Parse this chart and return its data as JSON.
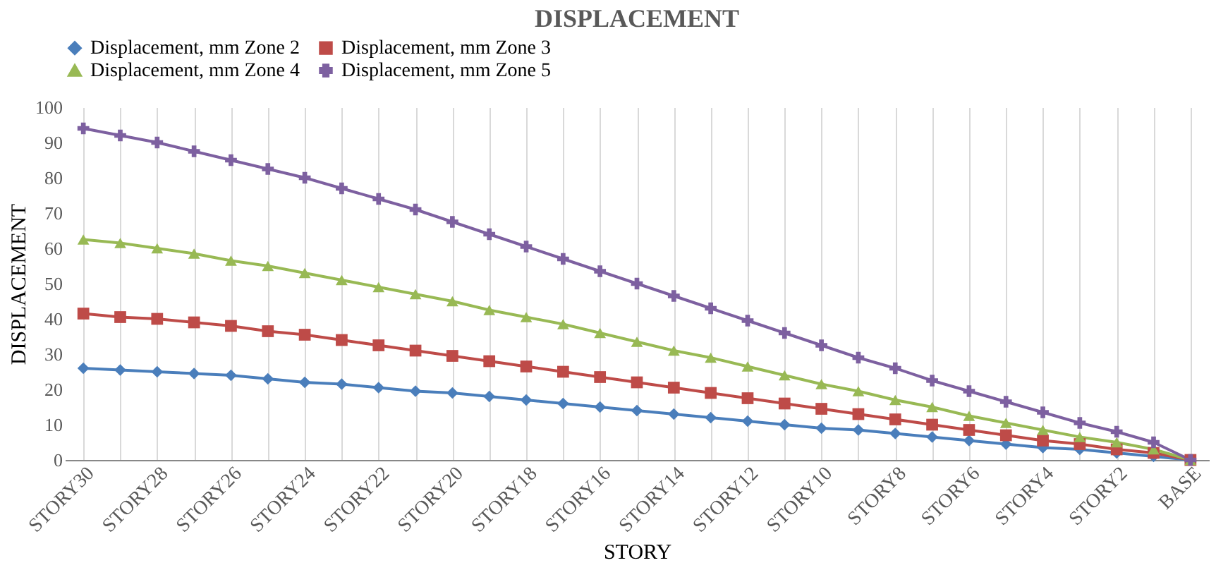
{
  "chart_data": {
    "type": "line",
    "title": "DISPLACEMENT",
    "xlabel": "STORY",
    "ylabel": "DISPLACEMENT",
    "categories": [
      "STORY30",
      null,
      "STORY28",
      null,
      "STORY26",
      null,
      "STORY24",
      null,
      "STORY22",
      null,
      "STORY20",
      null,
      "STORY18",
      null,
      "STORY16",
      null,
      "STORY14",
      null,
      "STORY12",
      null,
      "STORY10",
      null,
      "STORY8",
      null,
      "STORY6",
      null,
      "STORY4",
      null,
      "STORY2",
      null,
      "BASE"
    ],
    "series": [
      {
        "name": "Displacement, mm Zone 2",
        "color": "#4a7ebb",
        "marker": "diamond",
        "values": [
          26,
          25.5,
          25,
          24.5,
          24,
          23,
          22,
          21.5,
          20.5,
          19.5,
          19,
          18,
          17,
          16,
          15,
          14,
          13,
          12,
          11,
          10,
          9,
          8.5,
          7.5,
          6.5,
          5.5,
          4.5,
          3.5,
          3,
          2,
          1,
          0
        ]
      },
      {
        "name": "Displacement, mm Zone 3",
        "color": "#be4b48",
        "marker": "square",
        "values": [
          41.5,
          40.5,
          40,
          39,
          38,
          36.5,
          35.5,
          34,
          32.5,
          31,
          29.5,
          28,
          26.5,
          25,
          23.5,
          22,
          20.5,
          19,
          17.5,
          16,
          14.5,
          13,
          11.5,
          10,
          8.5,
          7,
          5.5,
          4.5,
          3,
          2,
          0
        ]
      },
      {
        "name": "Displacement, mm Zone 4",
        "color": "#98b954",
        "marker": "triangle",
        "values": [
          62.5,
          61.5,
          60,
          58.5,
          56.5,
          55,
          53,
          51,
          49,
          47,
          45,
          42.5,
          40.5,
          38.5,
          36,
          33.5,
          31,
          29,
          26.5,
          24,
          21.5,
          19.5,
          17,
          15,
          12.5,
          10.5,
          8.5,
          6.5,
          5,
          3,
          0
        ]
      },
      {
        "name": "Displacement, mm Zone 5",
        "color": "#7d60a0",
        "marker": "cross",
        "values": [
          94,
          92,
          90,
          87.5,
          85,
          82.5,
          80,
          77,
          74,
          71,
          67.5,
          64,
          60.5,
          57,
          53.5,
          50,
          46.5,
          43,
          39.5,
          36,
          32.5,
          29,
          26,
          22.5,
          19.5,
          16.5,
          13.5,
          10.5,
          8,
          5,
          0
        ]
      }
    ],
    "ylim": [
      0,
      100
    ],
    "yticks": [
      0,
      10,
      20,
      30,
      40,
      50,
      60,
      70,
      80,
      90,
      100
    ],
    "grid": "x",
    "legend": "top",
    "line_style": "solid"
  }
}
